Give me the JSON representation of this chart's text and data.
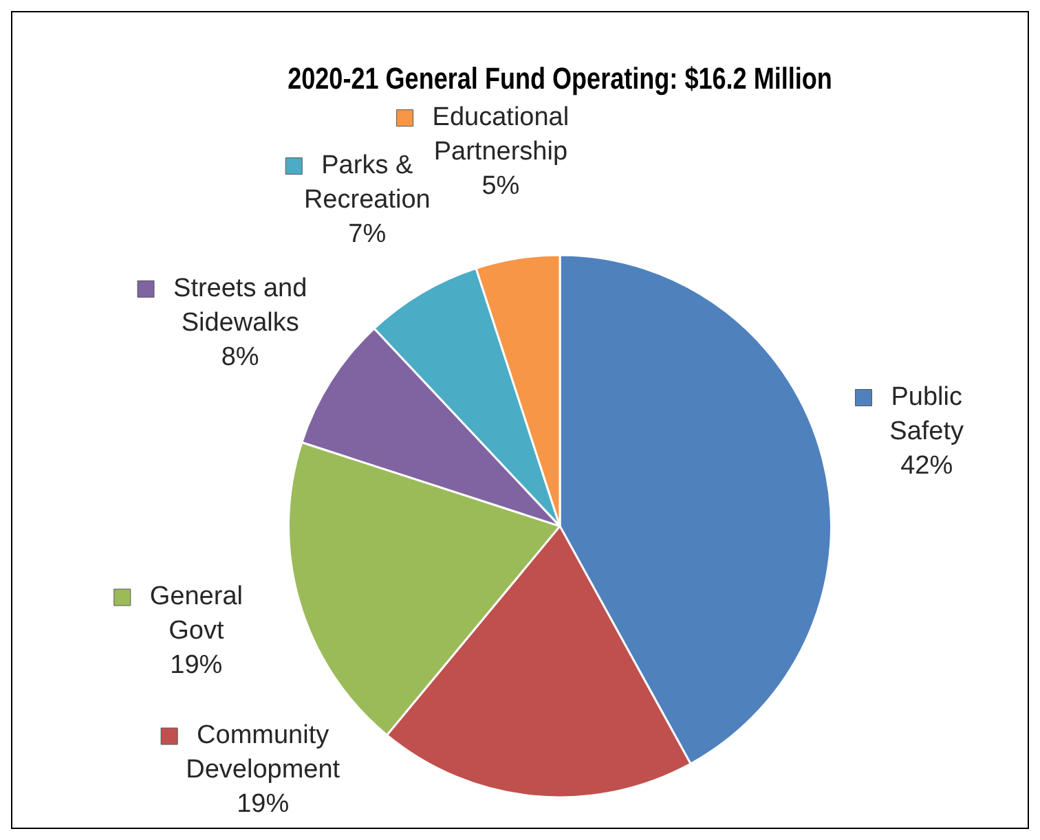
{
  "chart_data": {
    "type": "pie",
    "title": "2020-21 General Fund Operating: $16.2 Million",
    "categories": [
      "Public Safety",
      "Community Development",
      "General Govt",
      "Streets and Sidewalks",
      "Parks & Recreation",
      "Educational Partnership"
    ],
    "values": [
      42,
      19,
      19,
      8,
      7,
      5
    ],
    "colors": [
      "#4f81bd",
      "#c0504d",
      "#9bbb59",
      "#8064a2",
      "#4bacc6",
      "#f79646"
    ],
    "value_labels": [
      "42%",
      "19%",
      "19%",
      "8%",
      "7%",
      "5%"
    ],
    "legend": "left"
  }
}
